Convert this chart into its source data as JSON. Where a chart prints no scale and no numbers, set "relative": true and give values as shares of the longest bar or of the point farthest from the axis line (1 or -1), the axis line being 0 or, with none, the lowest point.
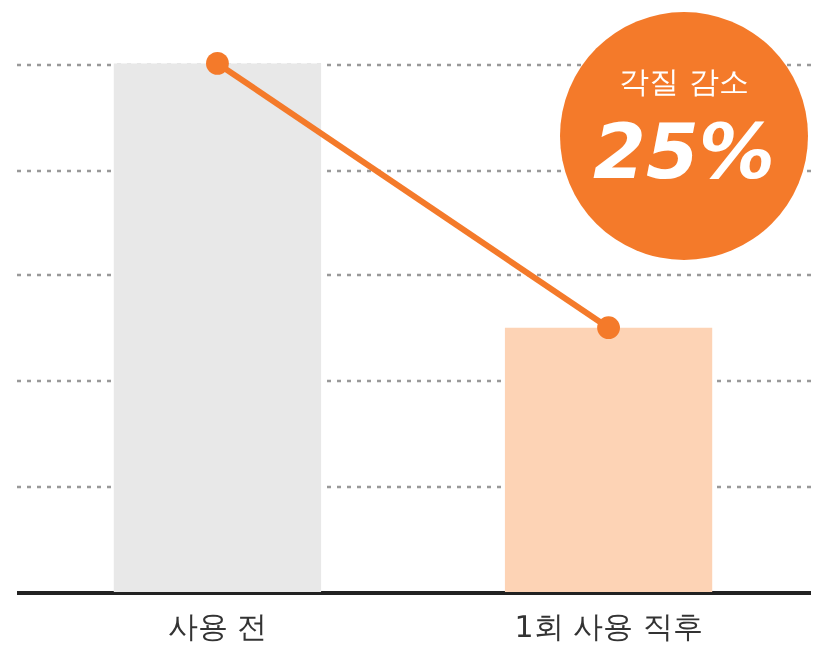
{
  "chart_data": {
    "type": "bar",
    "relative": true,
    "categories": [
      "사용 전",
      "1회 사용 직후"
    ],
    "series": [
      {
        "colors": [
          "#e8e8e8",
          "#fdd3b5"
        ],
        "values": [
          1,
          0.5
        ]
      },
      {
        "type": "line",
        "color": "#f47a2a",
        "values": [
          1,
          0.5
        ]
      }
    ],
    "marker": "circle",
    "grid": "y",
    "annotations": [
      "각질 감소",
      "25%"
    ]
  }
}
